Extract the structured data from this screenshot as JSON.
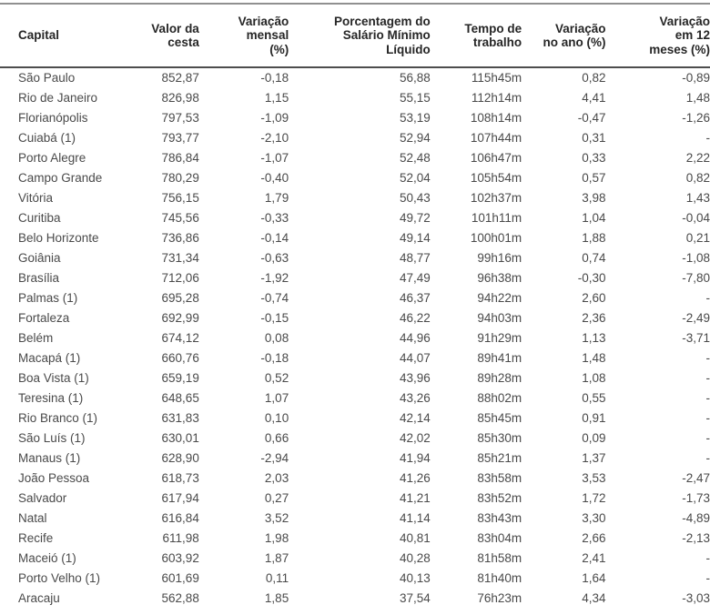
{
  "colors": {
    "top_rule": "#909090",
    "header_rule": "#4d4d4d",
    "header_text": "#262626",
    "body_text": "#4a4a4a",
    "background": "#ffffff"
  },
  "table": {
    "columns": [
      {
        "key": "capital",
        "label": "Capital",
        "align": "left"
      },
      {
        "key": "valor-cesta",
        "label": "Valor da\ncesta",
        "align": "right"
      },
      {
        "key": "variacao-mensal",
        "label": "Variação\nmensal\n(%)",
        "align": "right"
      },
      {
        "key": "pct-salario",
        "label": "Porcentagem do\nSalário Mínimo\nLíquido",
        "align": "right"
      },
      {
        "key": "tempo-trabalho",
        "label": "Tempo de\ntrabalho",
        "align": "right"
      },
      {
        "key": "variacao-ano",
        "label": "Variação\nno ano (%)",
        "align": "right"
      },
      {
        "key": "variacao-12m",
        "label": "Variação\nem 12\nmeses (%)",
        "align": "right"
      }
    ],
    "rows": [
      [
        "São Paulo",
        "852,87",
        "-0,18",
        "56,88",
        "115h45m",
        "0,82",
        "-0,89"
      ],
      [
        "Rio de Janeiro",
        "826,98",
        "1,15",
        "55,15",
        "112h14m",
        "4,41",
        "1,48"
      ],
      [
        "Florianópolis",
        "797,53",
        "-1,09",
        "53,19",
        "108h14m",
        "-0,47",
        "-1,26"
      ],
      [
        "Cuiabá (1)",
        "793,77",
        "-2,10",
        "52,94",
        "107h44m",
        "0,31",
        "-"
      ],
      [
        "Porto Alegre",
        "786,84",
        "-1,07",
        "52,48",
        "106h47m",
        "0,33",
        "2,22"
      ],
      [
        "Campo Grande",
        "780,29",
        "-0,40",
        "52,04",
        "105h54m",
        "0,57",
        "0,82"
      ],
      [
        "Vitória",
        "756,15",
        "1,79",
        "50,43",
        "102h37m",
        "3,98",
        "1,43"
      ],
      [
        "Curitiba",
        "745,56",
        "-0,33",
        "49,72",
        "101h11m",
        "1,04",
        "-0,04"
      ],
      [
        "Belo Horizonte",
        "736,86",
        "-0,14",
        "49,14",
        "100h01m",
        "1,88",
        "0,21"
      ],
      [
        "Goiânia",
        "731,34",
        "-0,63",
        "48,77",
        "99h16m",
        "0,74",
        "-1,08"
      ],
      [
        "Brasília",
        "712,06",
        "-1,92",
        "47,49",
        "96h38m",
        "-0,30",
        "-7,80"
      ],
      [
        "Palmas (1)",
        "695,28",
        "-0,74",
        "46,37",
        "94h22m",
        "2,60",
        "-"
      ],
      [
        "Fortaleza",
        "692,99",
        "-0,15",
        "46,22",
        "94h03m",
        "2,36",
        "-2,49"
      ],
      [
        "Belém",
        "674,12",
        "0,08",
        "44,96",
        "91h29m",
        "1,13",
        "-3,71"
      ],
      [
        "Macapá (1)",
        "660,76",
        "-0,18",
        "44,07",
        "89h41m",
        "1,48",
        "-"
      ],
      [
        "Boa Vista (1)",
        "659,19",
        "0,52",
        "43,96",
        "89h28m",
        "1,08",
        "-"
      ],
      [
        "Teresina (1)",
        "648,65",
        "1,07",
        "43,26",
        "88h02m",
        "0,55",
        "-"
      ],
      [
        "Rio Branco (1)",
        "631,83",
        "0,10",
        "42,14",
        "85h45m",
        "0,91",
        "-"
      ],
      [
        "São Luís (1)",
        "630,01",
        "0,66",
        "42,02",
        "85h30m",
        "0,09",
        "-"
      ],
      [
        "Manaus (1)",
        "628,90",
        "-2,94",
        "41,94",
        "85h21m",
        "1,37",
        "-"
      ],
      [
        "João Pessoa",
        "618,73",
        "2,03",
        "41,26",
        "83h58m",
        "3,53",
        "-2,47"
      ],
      [
        "Salvador",
        "617,94",
        "0,27",
        "41,21",
        "83h52m",
        "1,72",
        "-1,73"
      ],
      [
        "Natal",
        "616,84",
        "3,52",
        "41,14",
        "83h43m",
        "3,30",
        "-4,89"
      ],
      [
        "Recife",
        "611,98",
        "1,98",
        "40,81",
        "83h04m",
        "2,66",
        "-2,13"
      ],
      [
        "Maceió (1)",
        "603,92",
        "1,87",
        "40,28",
        "81h58m",
        "2,41",
        "-"
      ],
      [
        "Porto Velho (1)",
        "601,69",
        "0,11",
        "40,13",
        "81h40m",
        "1,64",
        "-"
      ],
      [
        "Aracaju",
        "562,88",
        "1,85",
        "37,54",
        "76h23m",
        "4,34",
        "-3,03"
      ]
    ]
  }
}
